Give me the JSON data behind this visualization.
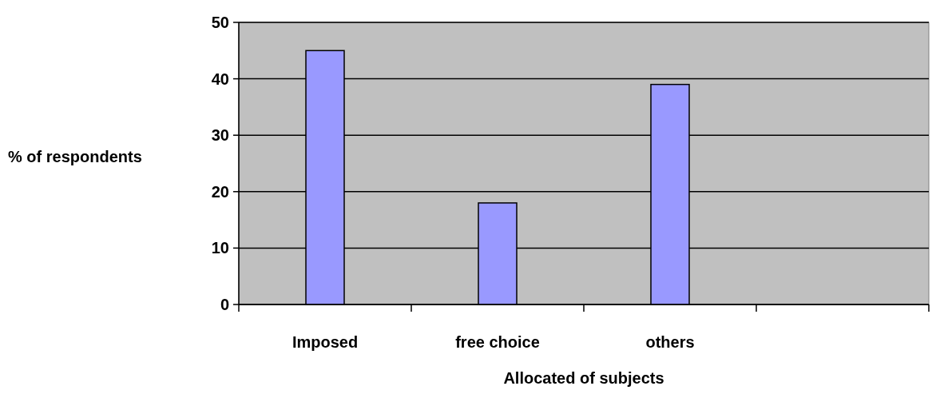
{
  "chart_data": {
    "type": "bar",
    "xlabel": "Allocated of subjects",
    "ylabel": "% of respondents",
    "categories": [
      "Imposed",
      "free choice",
      "others",
      null
    ],
    "values": [
      45,
      18,
      39,
      null
    ],
    "color": "#9999ff",
    "ylim": [
      0,
      50
    ],
    "yticks": [
      0,
      10,
      20,
      30,
      40,
      50
    ],
    "grid": "y"
  }
}
